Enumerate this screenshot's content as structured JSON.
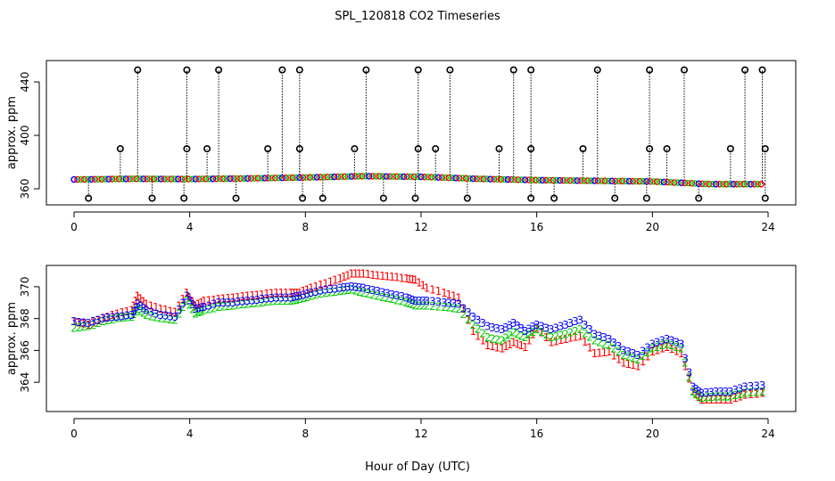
{
  "figure": {
    "title": "SPL_120818  CO2 Timeseries",
    "xlabel": "Hour of Day (UTC)"
  },
  "colors": {
    "axes": "#000000",
    "species_1": "#ff0000",
    "species_2": "#00cc00",
    "species_3": "#0000ff",
    "circle_top": "#000000",
    "circle_mid_highlight": "#00cccc"
  },
  "chart_data": [
    {
      "type": "scatter",
      "title": "",
      "xlabel": "",
      "ylabel": "approx. ppm",
      "xlim": [
        0,
        24
      ],
      "ylim": [
        352,
        452
      ],
      "xticks": [
        0,
        4,
        8,
        12,
        16,
        20,
        24
      ],
      "yticks": [
        360,
        400,
        440
      ],
      "grid": false,
      "legend": "none",
      "baseline": {
        "x": [
          0,
          2,
          4,
          6,
          8,
          10,
          12,
          14,
          16,
          18,
          20,
          22,
          23.8
        ],
        "y": [
          367,
          367.5,
          367.3,
          367.8,
          368.5,
          369.5,
          369,
          367.5,
          366.5,
          366,
          365.5,
          363.5,
          363.5
        ]
      },
      "spikes_high": [
        2.2,
        3.9,
        5.0,
        7.2,
        7.8,
        10.1,
        11.9,
        13.0,
        15.2,
        15.8,
        18.1,
        19.9,
        21.1,
        23.2,
        23.8
      ],
      "spikes_mid": [
        1.6,
        3.9,
        4.6,
        6.7,
        7.8,
        9.7,
        11.9,
        12.5,
        14.7,
        15.8,
        17.6,
        19.9,
        20.5,
        22.7,
        23.9
      ],
      "spikes_low": [
        0.5,
        2.7,
        3.8,
        5.6,
        7.9,
        8.6,
        10.7,
        11.8,
        13.6,
        15.8,
        16.6,
        18.7,
        19.8,
        21.6,
        23.9
      ],
      "spike_high_value": 449,
      "spike_mid_value": 390,
      "spike_low_value": 353
    },
    {
      "type": "scatter",
      "title": "",
      "xlabel": "Hour of Day (UTC)",
      "ylabel": "approx. ppm",
      "xlim": [
        0,
        24
      ],
      "ylim": [
        362.5,
        371
      ],
      "xticks": [
        0,
        4,
        8,
        12,
        16,
        20,
        24
      ],
      "yticks": [
        364,
        366,
        368,
        370
      ],
      "grid": false,
      "legend": "none",
      "series": [
        {
          "name": "1",
          "x": [
            0,
            0.5,
            1,
            1.5,
            2,
            2.2,
            2.5,
            3,
            3.5,
            3.9,
            4.2,
            4.5,
            5,
            5.5,
            6,
            6.5,
            7,
            7.5,
            7.8,
            8.2,
            8.7,
            9.2,
            9.6,
            10,
            10.5,
            11,
            11.5,
            11.8,
            12.2,
            12.8,
            13.3,
            13.8,
            14.3,
            14.8,
            15.2,
            15.6,
            16,
            16.5,
            17,
            17.5,
            18,
            18.5,
            19,
            19.5,
            20,
            20.5,
            21,
            21.4,
            21.7,
            22.2,
            22.7,
            23.2,
            23.8
          ],
          "y": [
            367.8,
            367.6,
            368,
            368.3,
            368.5,
            369.4,
            368.9,
            368.6,
            368.4,
            369.6,
            368.8,
            369.1,
            369.2,
            369.3,
            369.4,
            369.5,
            369.6,
            369.6,
            369.6,
            369.9,
            370.2,
            370.5,
            370.8,
            370.8,
            370.7,
            370.6,
            370.5,
            370.4,
            369.9,
            369.6,
            369.3,
            367.2,
            366.3,
            366.1,
            366.5,
            366.2,
            367.4,
            366.5,
            366.7,
            366.9,
            365.8,
            365.9,
            365.2,
            365,
            365.9,
            366.2,
            365.8,
            363.4,
            362.9,
            362.9,
            362.9,
            363.2,
            363.3
          ]
        },
        {
          "name": "2",
          "x": [
            0,
            0.5,
            1,
            1.5,
            2,
            2.2,
            2.5,
            3,
            3.5,
            3.9,
            4.2,
            4.5,
            5,
            5.5,
            6,
            6.5,
            7,
            7.5,
            7.8,
            8.2,
            8.7,
            9.2,
            9.6,
            10,
            10.5,
            11,
            11.5,
            11.8,
            12.2,
            12.8,
            13.3,
            13.8,
            14.3,
            14.8,
            15.2,
            15.6,
            16,
            16.5,
            17,
            17.5,
            18,
            18.5,
            19,
            19.5,
            20,
            20.5,
            21,
            21.4,
            21.7,
            22.2,
            22.7,
            23.2,
            23.8
          ],
          "y": [
            367.4,
            367.5,
            367.8,
            368,
            368.1,
            368.6,
            368.2,
            368,
            367.9,
            369.1,
            368.3,
            368.5,
            368.7,
            368.8,
            368.9,
            369,
            369.1,
            369.1,
            369.2,
            369.4,
            369.6,
            369.7,
            369.8,
            369.6,
            369.4,
            369.2,
            369,
            368.8,
            368.8,
            368.7,
            368.6,
            367.6,
            366.8,
            366.6,
            367.1,
            366.8,
            367.3,
            366.8,
            367,
            367.3,
            366.6,
            366.3,
            365.7,
            365.4,
            366.1,
            366.4,
            366.1,
            363.4,
            363,
            363.1,
            363.1,
            363.3,
            363.4
          ]
        },
        {
          "name": "3",
          "x": [
            0,
            0.5,
            1,
            1.5,
            2,
            2.2,
            2.5,
            3,
            3.5,
            3.9,
            4.2,
            4.5,
            5,
            5.5,
            6,
            6.5,
            7,
            7.5,
            7.8,
            8.2,
            8.7,
            9.2,
            9.6,
            10,
            10.5,
            11,
            11.5,
            11.8,
            12.2,
            12.8,
            13.3,
            13.8,
            14.3,
            14.8,
            15.2,
            15.6,
            16,
            16.5,
            17,
            17.5,
            18,
            18.5,
            19,
            19.5,
            20,
            20.5,
            21,
            21.4,
            21.7,
            22.2,
            22.7,
            23.2,
            23.8
          ],
          "y": [
            367.8,
            367.7,
            368,
            368.1,
            368.2,
            368.9,
            368.5,
            368.2,
            368.1,
            369.4,
            368.6,
            368.7,
            369,
            369,
            369.1,
            369.2,
            369.3,
            369.3,
            369.4,
            369.6,
            369.8,
            369.9,
            370,
            369.9,
            369.7,
            369.5,
            369.3,
            369.1,
            369.1,
            369,
            368.9,
            368.1,
            367.5,
            367.3,
            367.7,
            367.2,
            367.6,
            367.3,
            367.6,
            367.9,
            367,
            366.7,
            366,
            365.7,
            366.4,
            366.7,
            366.4,
            363.7,
            363.3,
            363.4,
            363.4,
            363.7,
            363.8
          ]
        }
      ]
    }
  ]
}
